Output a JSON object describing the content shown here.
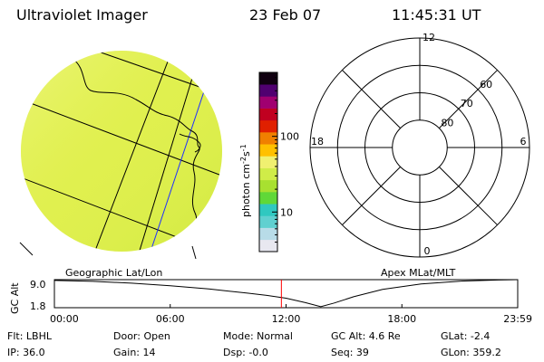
{
  "header": {
    "title": "Ultraviolet Imager",
    "date": "23 Feb 07",
    "time": "11:45:31 UT"
  },
  "colorbar": {
    "unit_label": "photon cm",
    "unit_sup1": "-2",
    "unit_mid": "s",
    "unit_sup2": "-1",
    "ticks": [
      {
        "label": "100",
        "value": 100
      },
      {
        "label": "10",
        "value": 10
      }
    ],
    "range": [
      3,
      700
    ],
    "scale": "log",
    "colors": [
      "#e8e8f0",
      "#b8dce8",
      "#60d0d0",
      "#30c8c0",
      "#60d838",
      "#a8e030",
      "#d0ec48",
      "#f0f070",
      "#ffc000",
      "#f08000",
      "#e02000",
      "#c00020",
      "#a00070",
      "#500070",
      "#100010"
    ]
  },
  "earth_disk": {
    "fill_color": "#dfef4c"
  },
  "polar_plot": {
    "mlt_labels": [
      {
        "label": "12",
        "mlt": 12
      },
      {
        "label": "18",
        "mlt": 18
      },
      {
        "label": "6",
        "mlt": 6
      },
      {
        "label": "0",
        "mlt": 0
      }
    ],
    "lat_labels": [
      {
        "label": "60",
        "lat": 60
      },
      {
        "label": "70",
        "lat": 70
      },
      {
        "label": "80",
        "lat": 80
      }
    ],
    "circle_lats": [
      50,
      60,
      70,
      80
    ]
  },
  "captions": {
    "left": "Geographic Lat/Lon",
    "right": "Apex MLat/MLT"
  },
  "altitude_chart": {
    "ylabel": "GC Alt",
    "ytick_labels": [
      "9.0",
      "1.8"
    ],
    "xtick_labels": [
      "00:00",
      "06:00",
      "12:00",
      "18:00",
      "23:59"
    ],
    "ylim": [
      1.8,
      9.0
    ],
    "current_time_hours": 11.758,
    "current_marker_color": "#ff0000",
    "series": {
      "x_hours": [
        0,
        2,
        4,
        6,
        8,
        10,
        11,
        12,
        13,
        13.8,
        14.5,
        15.5,
        17,
        19,
        21,
        23,
        24
      ],
      "y_re": [
        8.8,
        8.55,
        8.1,
        7.45,
        6.6,
        5.55,
        4.95,
        4.25,
        3.1,
        2.05,
        3.0,
        4.6,
        6.5,
        7.9,
        8.6,
        8.9,
        9.0
      ]
    }
  },
  "info": {
    "filter": "Flt: LBHL",
    "door": "Door: Open",
    "mode": "Mode: Normal",
    "gc_alt": "GC Alt: 4.6 Re",
    "glat": "GLat:  -2.4",
    "ip": "IP: 36.0",
    "gain": "Gain: 14",
    "dsp": "Dsp:   -0.0",
    "seq": "Seq: 39",
    "glon": "GLon: 359.2"
  }
}
